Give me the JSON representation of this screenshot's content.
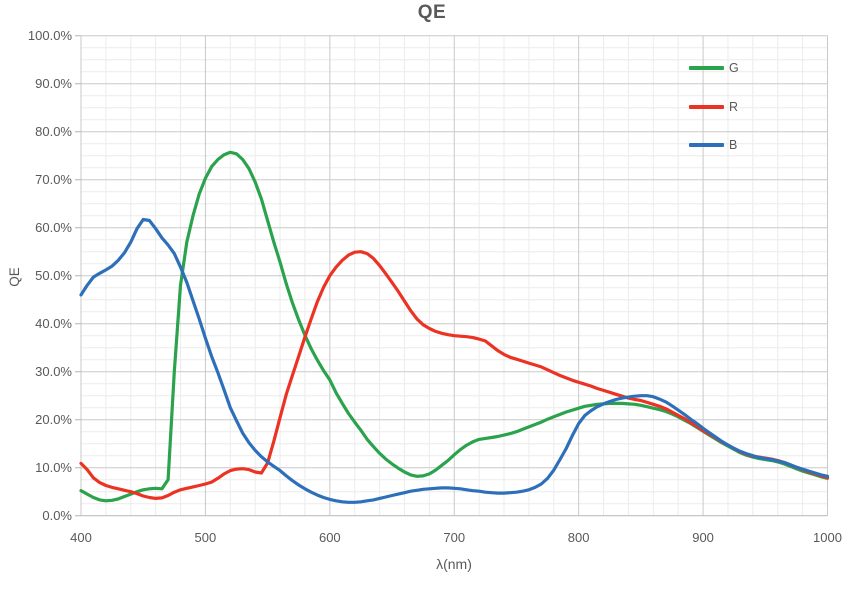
{
  "title": "QE",
  "chart_data": {
    "type": "line",
    "title": "QE",
    "xlabel": "λ(nm)",
    "ylabel": "QE",
    "xlim": [
      400,
      1000
    ],
    "ylim_pct": [
      0,
      100
    ],
    "x_major_step": 100,
    "x_minor_step": 20,
    "y_major_step_pct": 10,
    "y_minor_step_pct": 2.5,
    "grid": "major+minor",
    "legend_position": "inside-top-right",
    "x_tick_labels": [
      "400",
      "500",
      "600",
      "700",
      "800",
      "900",
      "1000"
    ],
    "y_tick_labels": [
      "100.0%",
      "90.0%",
      "80.0%",
      "70.0%",
      "60.0%",
      "50.0%",
      "40.0%",
      "30.0%",
      "20.0%",
      "10.0%",
      "0.0%"
    ],
    "x_step_nm": 5,
    "x_start_nm": 400,
    "series": [
      {
        "name": "G",
        "color": "#2BA24C",
        "values_pct": [
          5.2,
          4.5,
          3.8,
          3.3,
          3.1,
          3.2,
          3.5,
          4.0,
          4.5,
          5.0,
          5.4,
          5.6,
          5.7,
          5.6,
          7.5,
          30.0,
          48.0,
          57.0,
          62.5,
          67.0,
          70.3,
          72.7,
          74.2,
          75.2,
          75.7,
          75.4,
          74.2,
          72.3,
          69.5,
          66.0,
          61.5,
          57.0,
          52.8,
          48.3,
          44.3,
          40.8,
          37.6,
          34.8,
          32.4,
          30.2,
          28.3,
          25.6,
          23.4,
          21.3,
          19.5,
          17.8,
          15.9,
          14.4,
          13.0,
          11.8,
          10.8,
          9.9,
          9.1,
          8.5,
          8.2,
          8.3,
          8.7,
          9.5,
          10.5,
          11.5,
          12.7,
          13.8,
          14.7,
          15.4,
          15.9,
          16.1,
          16.3,
          16.5,
          16.8,
          17.1,
          17.5,
          18.0,
          18.5,
          19.0,
          19.5,
          20.1,
          20.6,
          21.1,
          21.6,
          22.0,
          22.4,
          22.8,
          23.0,
          23.2,
          23.3,
          23.4,
          23.4,
          23.4,
          23.3,
          23.2,
          23.0,
          22.7,
          22.4,
          22.1,
          21.7,
          21.2,
          20.6,
          19.9,
          19.2,
          18.4,
          17.6,
          16.8,
          16.0,
          15.2,
          14.5,
          13.8,
          13.1,
          12.6,
          12.2,
          11.9,
          11.7,
          11.5,
          11.2,
          10.8,
          10.3,
          9.8,
          9.3,
          8.9,
          8.5,
          8.1,
          7.8
        ]
      },
      {
        "name": "R",
        "color": "#EC3323",
        "values_pct": [
          10.9,
          9.6,
          7.9,
          6.9,
          6.3,
          5.9,
          5.6,
          5.3,
          5.0,
          4.6,
          4.1,
          3.8,
          3.6,
          3.7,
          4.2,
          4.9,
          5.4,
          5.7,
          6.0,
          6.3,
          6.6,
          7.0,
          7.8,
          8.7,
          9.4,
          9.7,
          9.8,
          9.6,
          9.1,
          8.9,
          11.0,
          15.5,
          20.5,
          25.3,
          29.3,
          33.2,
          37.2,
          41.0,
          44.6,
          47.6,
          50.0,
          51.8,
          53.2,
          54.3,
          54.9,
          55.0,
          54.6,
          53.6,
          52.1,
          50.4,
          48.6,
          46.7,
          44.7,
          42.7,
          41.0,
          39.8,
          39.0,
          38.4,
          38.0,
          37.7,
          37.5,
          37.4,
          37.3,
          37.1,
          36.8,
          36.4,
          35.4,
          34.4,
          33.6,
          33.0,
          32.6,
          32.2,
          31.8,
          31.4,
          31.0,
          30.4,
          29.8,
          29.2,
          28.7,
          28.2,
          27.8,
          27.4,
          27.0,
          26.5,
          26.1,
          25.7,
          25.3,
          24.9,
          24.5,
          24.2,
          24.0,
          23.6,
          23.2,
          22.8,
          22.3,
          21.6,
          20.9,
          20.2,
          19.4,
          18.6,
          17.7,
          17.0,
          16.2,
          15.4,
          14.7,
          14.0,
          13.3,
          12.8,
          12.4,
          12.2,
          12.0,
          11.8,
          11.5,
          11.1,
          10.6,
          10.1,
          9.6,
          9.1,
          8.7,
          8.3,
          7.9
        ]
      },
      {
        "name": "B",
        "color": "#2D70B9",
        "values_pct": [
          46.0,
          48.0,
          49.7,
          50.5,
          51.2,
          52.0,
          53.2,
          54.8,
          57.0,
          59.8,
          61.7,
          61.5,
          59.8,
          57.9,
          56.4,
          54.6,
          51.8,
          48.6,
          44.8,
          41.0,
          37.0,
          33.2,
          29.8,
          26.2,
          22.5,
          19.8,
          17.2,
          15.2,
          13.6,
          12.3,
          11.2,
          10.3,
          9.4,
          8.3,
          7.3,
          6.4,
          5.6,
          4.9,
          4.3,
          3.8,
          3.4,
          3.1,
          2.9,
          2.8,
          2.8,
          2.9,
          3.1,
          3.3,
          3.6,
          3.9,
          4.2,
          4.5,
          4.8,
          5.1,
          5.3,
          5.5,
          5.6,
          5.7,
          5.8,
          5.8,
          5.7,
          5.6,
          5.4,
          5.2,
          5.1,
          4.9,
          4.8,
          4.7,
          4.7,
          4.8,
          4.9,
          5.1,
          5.4,
          5.9,
          6.6,
          7.8,
          9.5,
          11.7,
          14.0,
          16.7,
          19.2,
          20.9,
          21.9,
          22.7,
          23.3,
          23.8,
          24.2,
          24.5,
          24.7,
          24.9,
          25.0,
          25.0,
          24.8,
          24.3,
          23.7,
          22.9,
          22.0,
          21.1,
          20.1,
          19.2,
          18.2,
          17.3,
          16.4,
          15.5,
          14.7,
          14.0,
          13.4,
          12.9,
          12.5,
          12.1,
          11.9,
          11.7,
          11.4,
          11.1,
          10.6,
          10.1,
          9.7,
          9.3,
          8.9,
          8.5,
          8.2
        ]
      }
    ],
    "style": {
      "background": "#FFFFFF",
      "axis_color": "#BFBFBF",
      "major_grid": "#C9C9C9",
      "minor_grid": "#ECECEC",
      "text_color": "#595959"
    }
  }
}
